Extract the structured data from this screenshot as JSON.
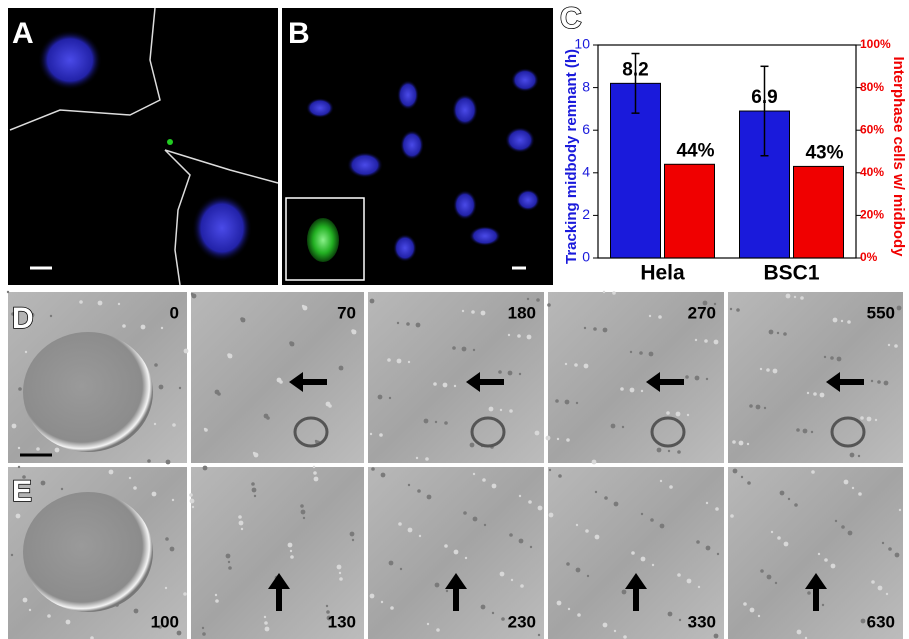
{
  "panel_labels": [
    "A",
    "B",
    "C",
    "D",
    "E"
  ],
  "rows": [
    {
      "times": [
        "0",
        "70",
        "180",
        "270",
        "550"
      ]
    },
    {
      "times": [
        "100",
        "130",
        "230",
        "330",
        "630"
      ]
    }
  ],
  "chart_data": {
    "type": "bar",
    "categories": [
      "Hela",
      "BSC1"
    ],
    "series": [
      {
        "name": "Tracking midbody remnant (h)",
        "color": "#1a1adb",
        "values": [
          8.2,
          6.9
        ],
        "errors": [
          1.4,
          2.1
        ],
        "value_labels": [
          "8.2",
          "6.9"
        ]
      },
      {
        "name": "Interphase cells w/ midbody",
        "color": "#f00000",
        "axis": "y2",
        "values": [
          44,
          43
        ],
        "value_labels": [
          "44%",
          "43%"
        ]
      }
    ],
    "ylim": [
      0,
      10
    ],
    "yticks": [
      0,
      2,
      4,
      6,
      8,
      10
    ],
    "y2lim": [
      0,
      100
    ],
    "y2ticks": [
      {
        "value": 0,
        "label": "0%"
      },
      {
        "value": 20,
        "label": "20%"
      },
      {
        "value": 40,
        "label": "40%"
      },
      {
        "value": 60,
        "label": "60%"
      },
      {
        "value": 80,
        "label": "80%"
      },
      {
        "value": 100,
        "label": "100%"
      }
    ]
  }
}
